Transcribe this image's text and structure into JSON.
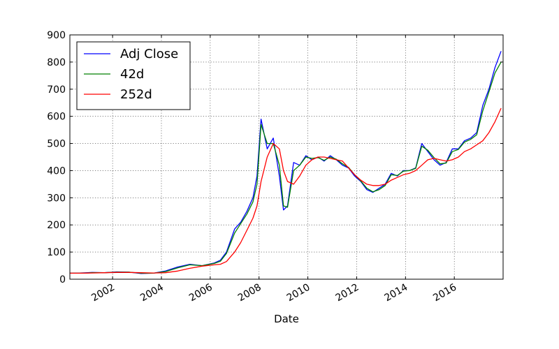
{
  "chart_data": {
    "type": "line",
    "xlabel": "Date",
    "ylabel": "",
    "xlim": [
      "2000-04-01",
      "2017-12-31"
    ],
    "ylim": [
      0,
      900
    ],
    "x_ticks": [
      "2002",
      "2004",
      "2006",
      "2008",
      "2010",
      "2012",
      "2014",
      "2016"
    ],
    "y_ticks": [
      0,
      100,
      200,
      300,
      400,
      500,
      600,
      700,
      800,
      900
    ],
    "grid": true,
    "legend_position": "top-left",
    "series": [
      {
        "name": "Adj Close",
        "color": "#0000ff",
        "x": [
          "2000-04",
          "2000-09",
          "2001-03",
          "2001-09",
          "2002-03",
          "2002-09",
          "2003-03",
          "2003-09",
          "2004-03",
          "2004-09",
          "2005-03",
          "2005-09",
          "2006-03",
          "2006-06",
          "2006-09",
          "2007-01",
          "2007-04",
          "2007-07",
          "2007-10",
          "2007-12",
          "2008-02",
          "2008-05",
          "2008-08",
          "2008-11",
          "2009-01",
          "2009-03",
          "2009-06",
          "2009-09",
          "2009-12",
          "2010-03",
          "2010-06",
          "2010-09",
          "2010-12",
          "2011-03",
          "2011-06",
          "2011-09",
          "2011-12",
          "2012-03",
          "2012-06",
          "2012-09",
          "2012-12",
          "2013-03",
          "2013-06",
          "2013-09",
          "2013-12",
          "2014-03",
          "2014-06",
          "2014-09",
          "2014-12",
          "2015-03",
          "2015-06",
          "2015-09",
          "2015-12",
          "2016-03",
          "2016-06",
          "2016-09",
          "2016-12",
          "2017-03",
          "2017-06",
          "2017-09",
          "2017-12"
        ],
        "y": [
          22,
          23,
          25,
          24,
          27,
          26,
          21,
          22,
          30,
          45,
          55,
          50,
          60,
          70,
          100,
          185,
          210,
          250,
          300,
          380,
          590,
          480,
          520,
          380,
          255,
          270,
          430,
          420,
          455,
          440,
          450,
          435,
          455,
          440,
          420,
          410,
          380,
          360,
          330,
          320,
          335,
          350,
          390,
          380,
          400,
          400,
          410,
          500,
          470,
          440,
          420,
          430,
          480,
          480,
          510,
          520,
          540,
          640,
          700,
          780,
          840
        ]
      },
      {
        "name": "42d",
        "color": "#008000",
        "x": [
          "2000-04",
          "2000-09",
          "2001-03",
          "2001-09",
          "2002-03",
          "2002-09",
          "2003-03",
          "2003-09",
          "2004-03",
          "2004-09",
          "2005-03",
          "2005-09",
          "2006-03",
          "2006-06",
          "2006-09",
          "2007-01",
          "2007-04",
          "2007-07",
          "2007-10",
          "2007-12",
          "2008-02",
          "2008-05",
          "2008-08",
          "2008-11",
          "2009-01",
          "2009-03",
          "2009-06",
          "2009-09",
          "2009-12",
          "2010-03",
          "2010-06",
          "2010-09",
          "2010-12",
          "2011-03",
          "2011-06",
          "2011-09",
          "2011-12",
          "2012-03",
          "2012-06",
          "2012-09",
          "2012-12",
          "2013-03",
          "2013-06",
          "2013-09",
          "2013-12",
          "2014-03",
          "2014-06",
          "2014-09",
          "2014-12",
          "2015-03",
          "2015-06",
          "2015-09",
          "2015-12",
          "2016-03",
          "2016-06",
          "2016-09",
          "2016-12",
          "2017-03",
          "2017-06",
          "2017-09",
          "2017-12"
        ],
        "y": [
          22,
          22,
          24,
          24,
          26,
          26,
          22,
          22,
          28,
          42,
          53,
          50,
          58,
          66,
          95,
          170,
          205,
          240,
          285,
          350,
          570,
          500,
          500,
          420,
          270,
          265,
          400,
          420,
          450,
          445,
          448,
          438,
          450,
          442,
          425,
          412,
          385,
          362,
          335,
          322,
          330,
          345,
          385,
          382,
          398,
          400,
          408,
          490,
          475,
          448,
          425,
          428,
          470,
          478,
          505,
          515,
          532,
          620,
          690,
          760,
          800
        ]
      },
      {
        "name": "252d",
        "color": "#ff0000",
        "x": [
          "2000-04",
          "2000-09",
          "2001-03",
          "2001-09",
          "2002-03",
          "2002-09",
          "2003-03",
          "2003-09",
          "2004-03",
          "2004-09",
          "2005-03",
          "2005-09",
          "2006-03",
          "2006-06",
          "2006-09",
          "2007-01",
          "2007-04",
          "2007-07",
          "2007-10",
          "2007-12",
          "2008-02",
          "2008-05",
          "2008-08",
          "2008-11",
          "2009-01",
          "2009-03",
          "2009-06",
          "2009-09",
          "2009-12",
          "2010-03",
          "2010-06",
          "2010-09",
          "2010-12",
          "2011-03",
          "2011-06",
          "2011-09",
          "2011-12",
          "2012-03",
          "2012-06",
          "2012-09",
          "2012-12",
          "2013-03",
          "2013-06",
          "2013-09",
          "2013-12",
          "2014-03",
          "2014-06",
          "2014-09",
          "2014-12",
          "2015-03",
          "2015-06",
          "2015-09",
          "2015-12",
          "2016-03",
          "2016-06",
          "2016-09",
          "2016-12",
          "2017-03",
          "2017-06",
          "2017-09",
          "2017-12"
        ],
        "y": [
          22,
          22,
          23,
          24,
          25,
          25,
          24,
          23,
          24,
          30,
          40,
          48,
          53,
          55,
          65,
          100,
          135,
          180,
          225,
          270,
          360,
          450,
          500,
          480,
          400,
          360,
          350,
          380,
          420,
          440,
          450,
          450,
          445,
          440,
          435,
          410,
          385,
          365,
          350,
          345,
          345,
          350,
          365,
          375,
          385,
          390,
          400,
          420,
          440,
          445,
          440,
          435,
          440,
          450,
          470,
          480,
          495,
          510,
          540,
          580,
          630
        ]
      }
    ]
  }
}
